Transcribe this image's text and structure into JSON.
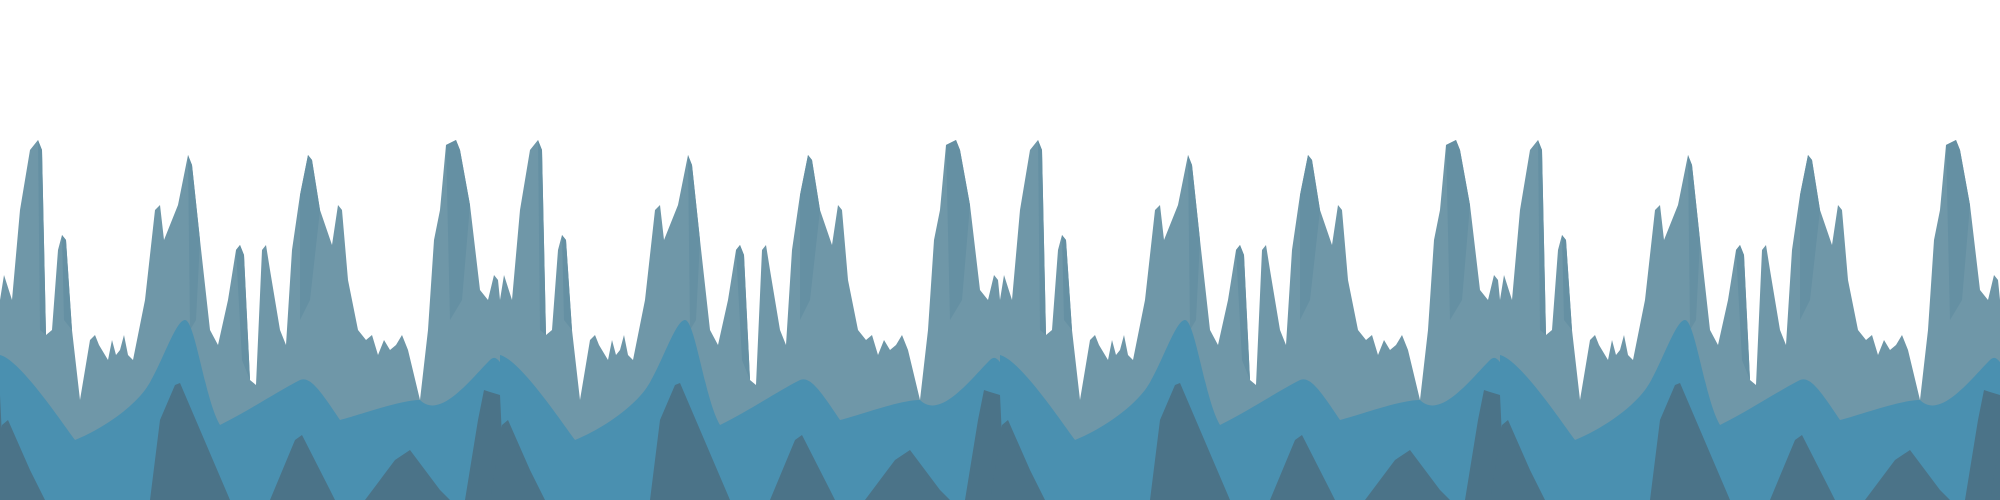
{
  "scene": {
    "background": "#ffffff",
    "layers": [
      {
        "name": "back-peaks",
        "color": "#6f97a8"
      },
      {
        "name": "back-peaks-shade",
        "color": "#6590a3"
      },
      {
        "name": "middle-hills",
        "color": "#4a90b0"
      },
      {
        "name": "front-peaks",
        "color": "#4b7388"
      }
    ]
  }
}
